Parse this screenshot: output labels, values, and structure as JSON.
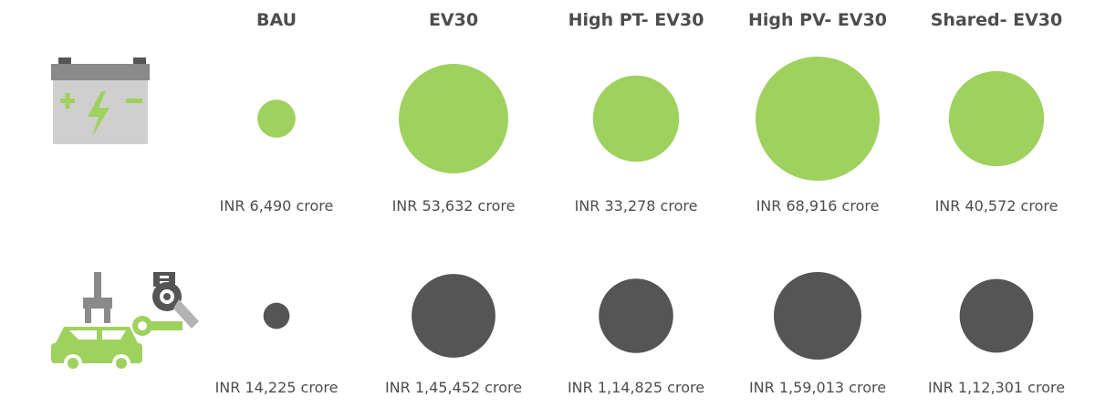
{
  "chart_data": {
    "type": "bubble",
    "categories": [
      "BAU",
      "EV30",
      "High PT- EV30",
      "High PV- EV30",
      "Shared- EV30"
    ],
    "series": [
      {
        "icon": "battery-icon",
        "color": "#9fd15f",
        "values": [
          6490,
          53632,
          33278,
          68916,
          40572
        ],
        "labels": [
          "INR 6,490 crore",
          "INR 53,632 crore",
          "INR 33,278 crore",
          "INR 68,916 crore",
          "INR 40,572 crore"
        ]
      },
      {
        "icon": "car-assembly-icon",
        "color": "#555555",
        "values": [
          14225,
          145452,
          114825,
          159013,
          112301
        ],
        "labels": [
          "INR 14,225 crore",
          "INR 1,45,452 crore",
          "INR 1,14,825 crore",
          "INR 1,59,013 crore",
          "INR 1,12,301 crore"
        ]
      }
    ]
  }
}
